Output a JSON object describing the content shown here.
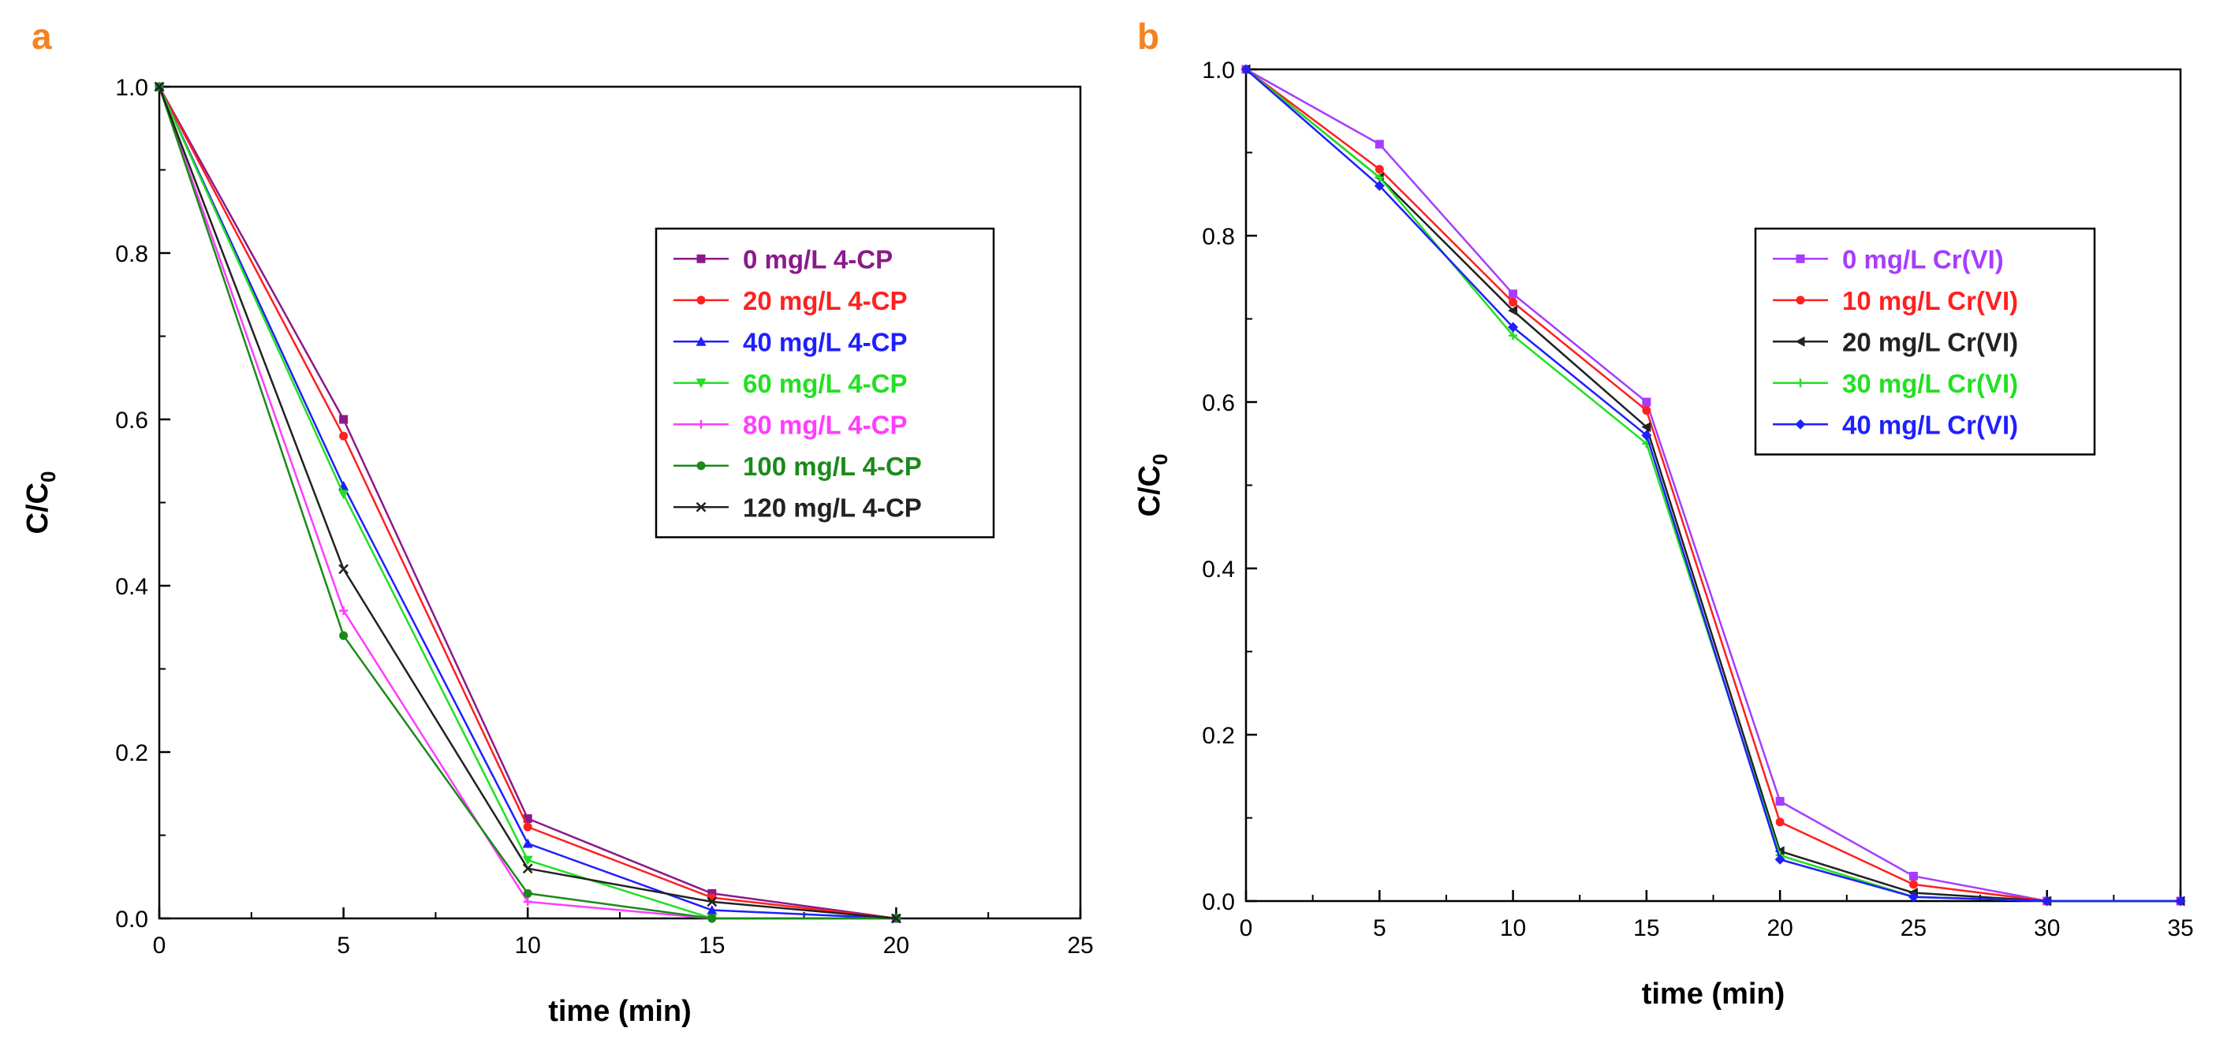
{
  "colors": {
    "panel_label": "#f58220",
    "axis": "#000000"
  },
  "chart_data": [
    {
      "panel": "a",
      "type": "line",
      "xlabel": "time (min)",
      "ylabel": "C/C",
      "ylabel_sub": "0",
      "xlim": [
        0,
        25
      ],
      "ylim": [
        0,
        1.0
      ],
      "xticks": [
        0,
        5,
        10,
        15,
        20,
        25
      ],
      "xtick_labels": [
        "0",
        "5",
        "10",
        "15",
        "20",
        "25"
      ],
      "yticks": [
        0,
        0.2,
        0.4,
        0.6,
        0.8,
        1.0
      ],
      "ytick_labels": [
        "0.0",
        "0.2",
        "0.4",
        "0.6",
        "0.8",
        "1.0"
      ],
      "legend_position": "right",
      "x": [
        0,
        5,
        10,
        15,
        20
      ],
      "series": [
        {
          "name": "0 mg/L 4-CP",
          "color": "#8b1a89",
          "marker": "square",
          "values": [
            1.0,
            0.6,
            0.12,
            0.03,
            0.0
          ]
        },
        {
          "name": "20 mg/L 4-CP",
          "color": "#ff2020",
          "marker": "circle",
          "values": [
            1.0,
            0.58,
            0.11,
            0.025,
            0.0
          ]
        },
        {
          "name": "40 mg/L 4-CP",
          "color": "#1f1fff",
          "marker": "triangle-up",
          "values": [
            1.0,
            0.52,
            0.09,
            0.01,
            0.0
          ]
        },
        {
          "name": "60 mg/L 4-CP",
          "color": "#22e022",
          "marker": "triangle-down",
          "values": [
            1.0,
            0.51,
            0.07,
            0.0,
            0.0
          ]
        },
        {
          "name": "80 mg/L 4-CP",
          "color": "#ff3dff",
          "marker": "plus",
          "values": [
            1.0,
            0.37,
            0.02,
            0.0,
            0.0
          ]
        },
        {
          "name": "100 mg/L 4-CP",
          "color": "#1a8a1a",
          "marker": "circle",
          "values": [
            1.0,
            0.34,
            0.03,
            0.0,
            0.0
          ]
        },
        {
          "name": "120 mg/L 4-CP",
          "color": "#222222",
          "marker": "x",
          "values": [
            1.0,
            0.42,
            0.06,
            0.02,
            0.0
          ]
        }
      ]
    },
    {
      "panel": "b",
      "type": "line",
      "xlabel": "time (min)",
      "ylabel": "C/C",
      "ylabel_sub": "0",
      "xlim": [
        0,
        35
      ],
      "ylim": [
        0,
        1.0
      ],
      "xticks": [
        0,
        5,
        10,
        15,
        20,
        25,
        30,
        35
      ],
      "xtick_labels": [
        "0",
        "5",
        "10",
        "15",
        "20",
        "25",
        "30",
        "35"
      ],
      "yticks": [
        0,
        0.2,
        0.4,
        0.6,
        0.8,
        1.0
      ],
      "ytick_labels": [
        "0.0",
        "0.2",
        "0.4",
        "0.6",
        "0.8",
        "1.0"
      ],
      "legend_position": "top-right",
      "x": [
        0,
        5,
        10,
        15,
        20,
        25,
        30,
        35
      ],
      "series": [
        {
          "name": "0 mg/L Cr(VI)",
          "color": "#a63cff",
          "marker": "square",
          "values": [
            1.0,
            0.91,
            0.73,
            0.6,
            0.12,
            0.03,
            0.0,
            0.0
          ]
        },
        {
          "name": "10 mg/L Cr(VI)",
          "color": "#ff2020",
          "marker": "circle",
          "values": [
            1.0,
            0.88,
            0.72,
            0.59,
            0.095,
            0.02,
            0.0,
            0.0
          ]
        },
        {
          "name": "20 mg/L Cr(VI)",
          "color": "#222222",
          "marker": "triangle-left",
          "values": [
            1.0,
            0.87,
            0.71,
            0.57,
            0.06,
            0.01,
            0.0,
            0.0
          ]
        },
        {
          "name": "30 mg/L Cr(VI)",
          "color": "#22e022",
          "marker": "plus",
          "values": [
            1.0,
            0.87,
            0.68,
            0.55,
            0.055,
            0.005,
            0.0,
            0.0
          ]
        },
        {
          "name": "40 mg/L Cr(VI)",
          "color": "#1f1fff",
          "marker": "diamond",
          "values": [
            1.0,
            0.86,
            0.69,
            0.56,
            0.05,
            0.005,
            0.0,
            0.0
          ]
        }
      ]
    }
  ]
}
